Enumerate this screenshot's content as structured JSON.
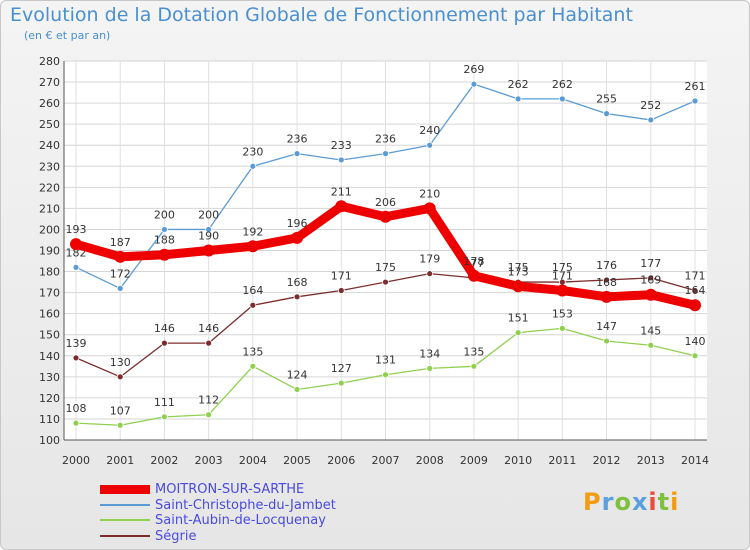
{
  "chart_data": {
    "type": "line",
    "title": "Evolution de la Dotation Globale de Fonctionnement par Habitant",
    "subtitle": "(en € et par an)",
    "x": [
      "2000",
      "2001",
      "2002",
      "2003",
      "2004",
      "2005",
      "2006",
      "2007",
      "2008",
      "2009",
      "2010",
      "2011",
      "2012",
      "2013",
      "2014"
    ],
    "ylim": [
      100,
      280
    ],
    "yticks": [
      "100",
      "110",
      "120",
      "130",
      "140",
      "150",
      "160",
      "170",
      "180",
      "190",
      "200",
      "210",
      "220",
      "230",
      "240",
      "250",
      "260",
      "270",
      "280"
    ],
    "grid": true,
    "legend_position": "bottom-left",
    "series": [
      {
        "name": "MOITRON-SUR-SARTHE",
        "color": "#ee0000",
        "values": [
          193,
          187,
          188,
          190,
          192,
          196,
          211,
          206,
          210,
          178,
          173,
          171,
          168,
          169,
          164
        ]
      },
      {
        "name": "Saint-Christophe-du-Jambet",
        "color": "#5b9bd5",
        "values": [
          182,
          172,
          200,
          200,
          230,
          236,
          233,
          236,
          240,
          269,
          262,
          262,
          255,
          252,
          261
        ]
      },
      {
        "name": "Saint-Aubin-de-Locquenay",
        "color": "#90d050",
        "values": [
          108,
          107,
          111,
          112,
          135,
          124,
          127,
          131,
          134,
          135,
          151,
          153,
          147,
          145,
          140
        ]
      },
      {
        "name": "Ségrie",
        "color": "#7b2c2c",
        "values": [
          139,
          130,
          146,
          146,
          164,
          168,
          171,
          175,
          179,
          177,
          175,
          175,
          176,
          177,
          171
        ]
      }
    ]
  },
  "logo": {
    "text": "Proxiti"
  }
}
